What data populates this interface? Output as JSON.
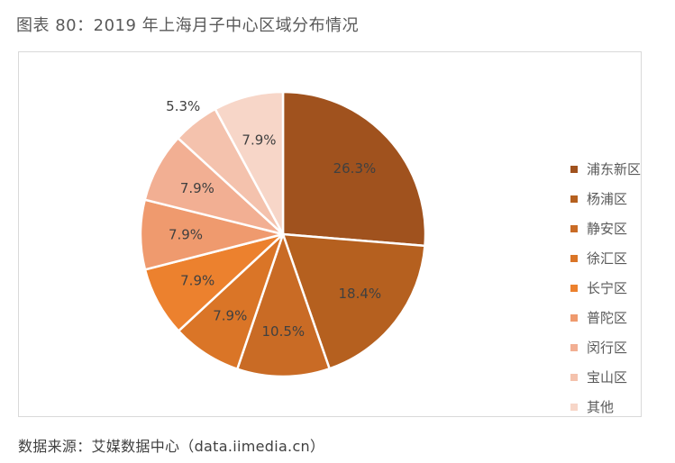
{
  "title": "图表 80：2019 年上海月子中心区域分布情况",
  "source": "数据来源：艾媒数据中心（data.iimedia.cn）",
  "chart_data": {
    "type": "pie",
    "title": "",
    "categories": [
      "浦东新区",
      "杨浦区",
      "静安区",
      "徐汇区",
      "长宁区",
      "普陀区",
      "闵行区",
      "宝山区",
      "其他"
    ],
    "values": [
      26.3,
      18.4,
      10.5,
      7.9,
      7.9,
      7.9,
      7.9,
      5.3,
      7.9
    ],
    "labels": [
      "26.3%",
      "18.4%",
      "10.5%",
      "7.9%",
      "7.9%",
      "7.9%",
      "7.9%",
      "5.3%",
      "7.9%"
    ],
    "colors": [
      "#A0521E",
      "#B5601F",
      "#C96B25",
      "#DA7527",
      "#EC812E",
      "#EF9A6E",
      "#F2AF93",
      "#F4C2AD",
      "#F7D6C8"
    ],
    "start_angle": "12 o'clock",
    "direction": "clockwise",
    "legend_position": "right",
    "slice_border": "#ffffff"
  }
}
